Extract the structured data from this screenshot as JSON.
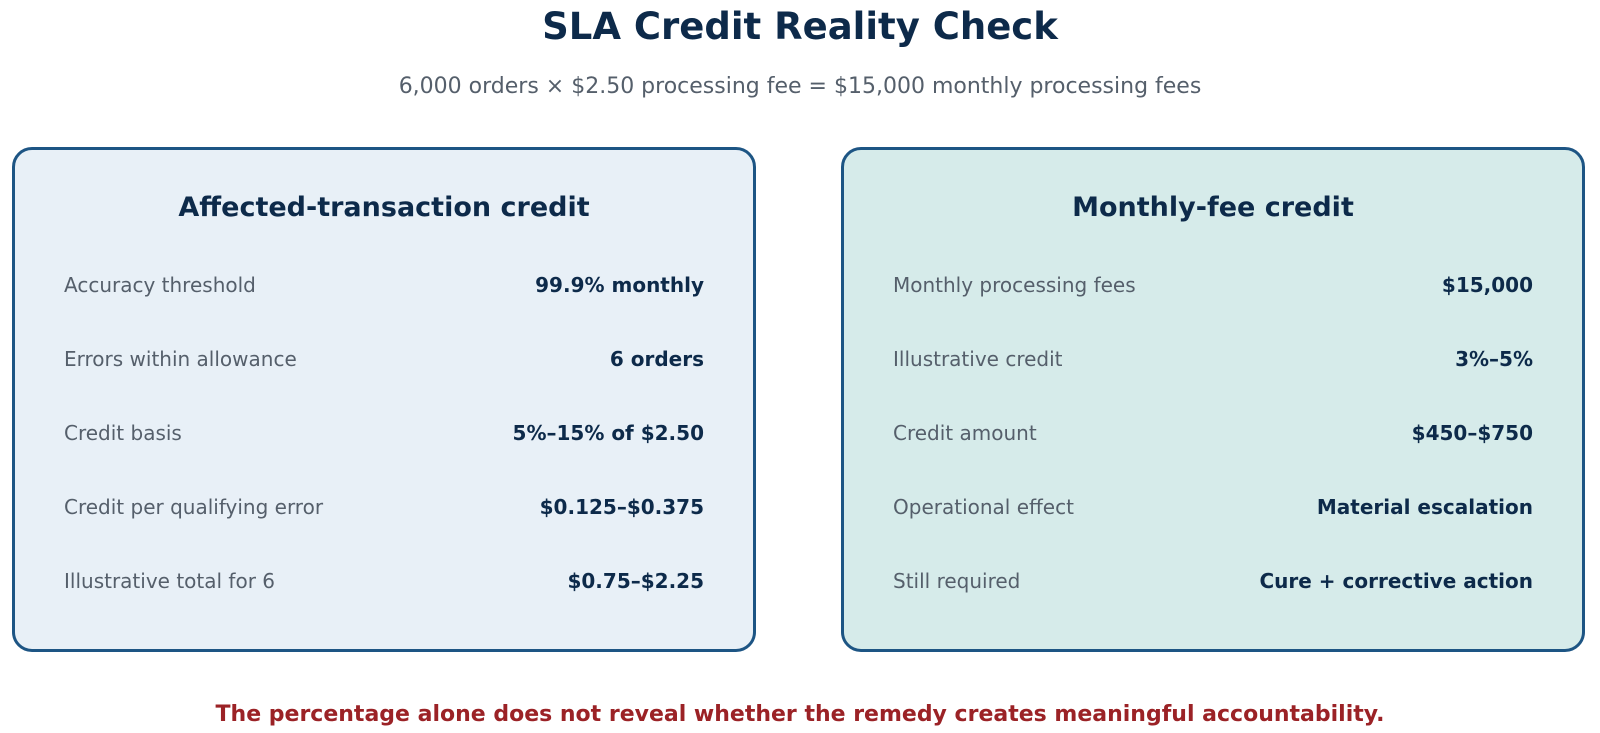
{
  "title": "SLA Credit Reality Check",
  "subtitle": "6,000 orders × $2.50 processing fee = $15,000 monthly processing fees",
  "cards": [
    {
      "heading": "Affected-transaction credit",
      "rows": [
        {
          "label": "Accuracy threshold",
          "value": "99.9% monthly"
        },
        {
          "label": "Errors within allowance",
          "value": "6 orders"
        },
        {
          "label": "Credit basis",
          "value": "5%–15% of $2.50"
        },
        {
          "label": "Credit per qualifying error",
          "value": "$0.125–$0.375"
        },
        {
          "label": "Illustrative total for 6",
          "value": "$0.75–$2.25"
        }
      ]
    },
    {
      "heading": "Monthly-fee credit",
      "rows": [
        {
          "label": "Monthly processing fees",
          "value": "$15,000"
        },
        {
          "label": "Illustrative credit",
          "value": "3%–5%"
        },
        {
          "label": "Credit amount",
          "value": "$450–$750"
        },
        {
          "label": "Operational effect",
          "value": "Material escalation"
        },
        {
          "label": "Still required",
          "value": "Cure + corrective action"
        }
      ]
    }
  ],
  "footer": "The percentage alone does not reveal whether the remedy creates meaningful accountability.",
  "colors": {
    "title": "#0d2a4a",
    "card_border": "#1d5584",
    "left_card_bg": "#e8f0f7",
    "right_card_bg": "#d6ebea",
    "footer": "#9b2226"
  }
}
